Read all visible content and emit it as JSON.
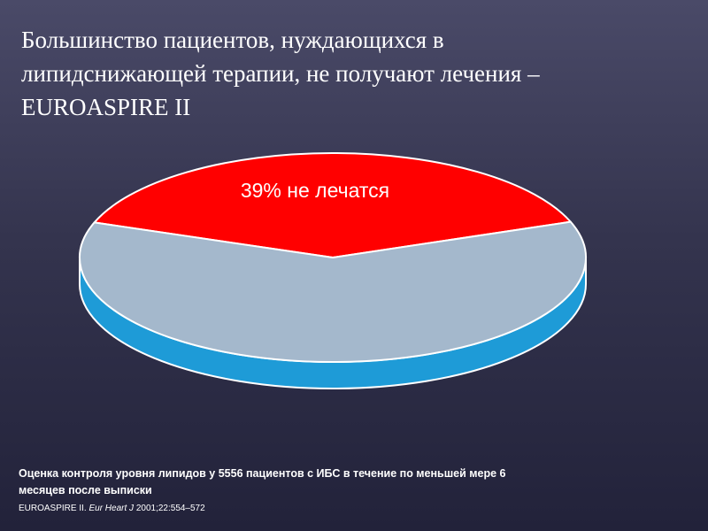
{
  "slide": {
    "title_lines": [
      "Большинство пациентов, нуждающихся в",
      "липидснижающей терапии, не получают лечения –",
      "EUROASPIRE II"
    ],
    "footnote_lines": [
      "Оценка контроля уровня липидов у 5556  пациентов с ИБС в течение по меньшей мере 6",
      "месяцев после выписки"
    ],
    "source": {
      "prefix": "EUROASPIRE II. ",
      "journal": "Eur Heart J",
      "suffix": " 2001;22:554–572"
    }
  },
  "chart_data": {
    "type": "pie",
    "style": "3d-tilted",
    "slices": [
      {
        "value": 39,
        "label": "39% не лечатся",
        "color": "#ff0000",
        "side_color": "#cc0000"
      },
      {
        "value": 61,
        "label": "",
        "color": "#a4b8cc",
        "side_color": "#1e9bd7"
      }
    ],
    "legend": "none"
  }
}
